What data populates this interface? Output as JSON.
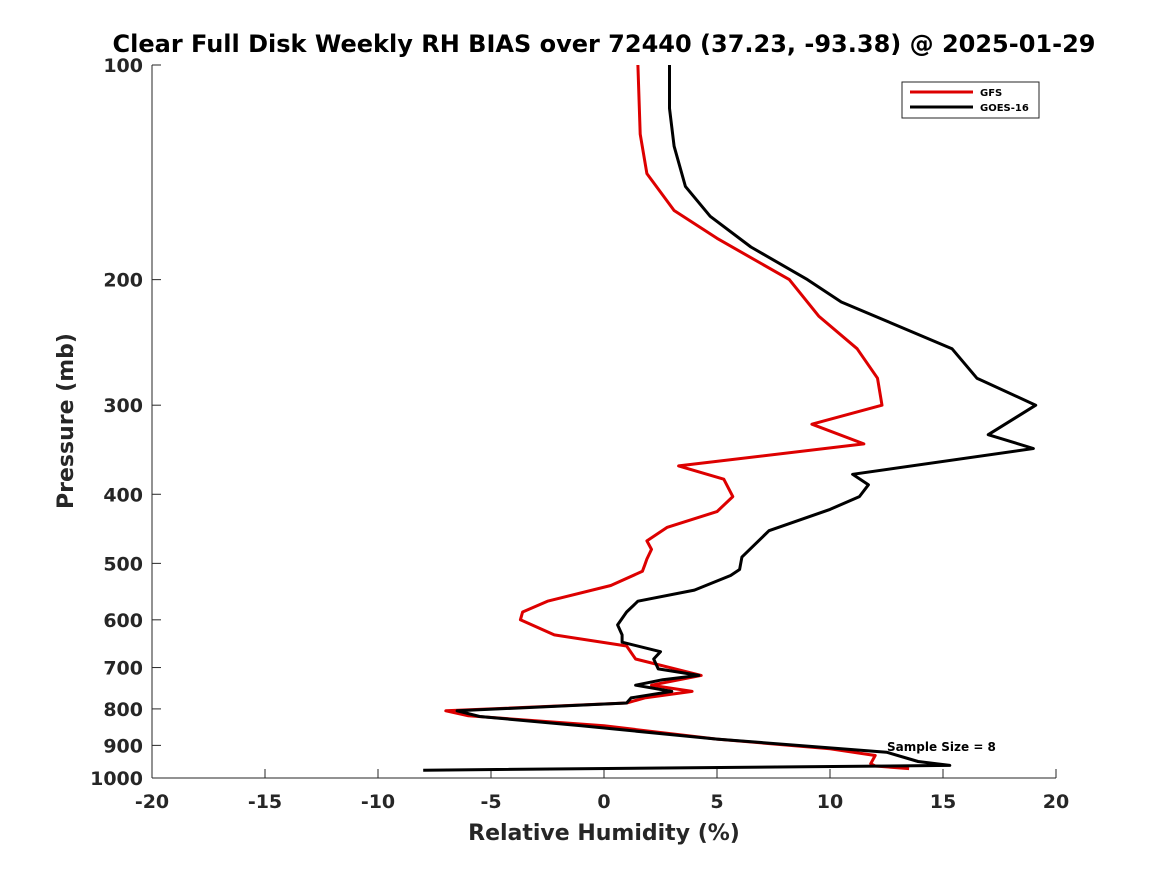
{
  "chart_data": {
    "type": "line",
    "title": "Clear Full Disk Weekly RH BIAS over 72440 (37.23, -93.38) @ 2025-01-29",
    "xlabel": "Relative Humidity (%)",
    "ylabel": "Pressure (mb)",
    "xlim": [
      -20,
      20
    ],
    "ylim": [
      1000,
      100
    ],
    "y_scale": "log",
    "y_reversed": true,
    "x_ticks": [
      "-20",
      "-15",
      "-10",
      "-5",
      "0",
      "5",
      "10",
      "15",
      "20"
    ],
    "y_ticks": [
      "100",
      "200",
      "300",
      "400",
      "500",
      "600",
      "700",
      "800",
      "900",
      "1000"
    ],
    "grid": false,
    "legend_position": "top-right",
    "annotation": "Sample Size = 8",
    "series": [
      {
        "name": "GFS",
        "color": "#dd0000",
        "points": [
          [
            13.5,
            970
          ],
          [
            12.0,
            962
          ],
          [
            11.8,
            955
          ],
          [
            12.0,
            930
          ],
          [
            10.0,
            910
          ],
          [
            5.0,
            882
          ],
          [
            0.0,
            845
          ],
          [
            -6.0,
            818
          ],
          [
            -7.0,
            805
          ],
          [
            1.0,
            785
          ],
          [
            1.8,
            772
          ],
          [
            3.9,
            756
          ],
          [
            2.1,
            741
          ],
          [
            4.3,
            718
          ],
          [
            1.4,
            681
          ],
          [
            1.0,
            653
          ],
          [
            -2.2,
            630
          ],
          [
            -3.7,
            600
          ],
          [
            -3.6,
            585
          ],
          [
            -2.5,
            565
          ],
          [
            0.3,
            537
          ],
          [
            1.7,
            513
          ],
          [
            1.8,
            503
          ],
          [
            1.9,
            493
          ],
          [
            2.1,
            478
          ],
          [
            1.9,
            465
          ],
          [
            2.8,
            445
          ],
          [
            5.0,
            423
          ],
          [
            5.7,
            403
          ],
          [
            5.3,
            381
          ],
          [
            3.3,
            365
          ],
          [
            11.5,
            340
          ],
          [
            9.2,
            319
          ],
          [
            12.3,
            300
          ],
          [
            12.1,
            275
          ],
          [
            11.2,
            250
          ],
          [
            9.5,
            225
          ],
          [
            8.2,
            200
          ],
          [
            5.0,
            175
          ],
          [
            3.1,
            160
          ],
          [
            1.9,
            142
          ],
          [
            1.6,
            125
          ],
          [
            1.5,
            100
          ]
        ]
      },
      {
        "name": "GOES-16",
        "color": "#000000",
        "points": [
          [
            -8.0,
            975
          ],
          [
            15.3,
            960
          ],
          [
            13.9,
            948
          ],
          [
            12.5,
            920
          ],
          [
            5.0,
            882
          ],
          [
            -1.0,
            845
          ],
          [
            -5.5,
            820
          ],
          [
            -6.5,
            805
          ],
          [
            1.0,
            785
          ],
          [
            1.2,
            772
          ],
          [
            3.0,
            756
          ],
          [
            1.4,
            741
          ],
          [
            2.6,
            728
          ],
          [
            4.2,
            718
          ],
          [
            2.4,
            703
          ],
          [
            2.2,
            681
          ],
          [
            2.5,
            665
          ],
          [
            0.8,
            645
          ],
          [
            0.8,
            630
          ],
          [
            0.6,
            610
          ],
          [
            1.0,
            585
          ],
          [
            1.5,
            565
          ],
          [
            4.0,
            545
          ],
          [
            5.6,
            520
          ],
          [
            6.0,
            510
          ],
          [
            6.1,
            490
          ],
          [
            7.3,
            450
          ],
          [
            10.0,
            420
          ],
          [
            11.3,
            403
          ],
          [
            11.7,
            388
          ],
          [
            11.0,
            375
          ],
          [
            19.0,
            345
          ],
          [
            17.0,
            330
          ],
          [
            19.1,
            300
          ],
          [
            16.5,
            275
          ],
          [
            15.4,
            250
          ],
          [
            10.5,
            215
          ],
          [
            9.0,
            200
          ],
          [
            6.5,
            180
          ],
          [
            4.7,
            163
          ],
          [
            3.6,
            148
          ],
          [
            3.1,
            130
          ],
          [
            2.9,
            115
          ],
          [
            2.9,
            100
          ]
        ]
      }
    ]
  }
}
